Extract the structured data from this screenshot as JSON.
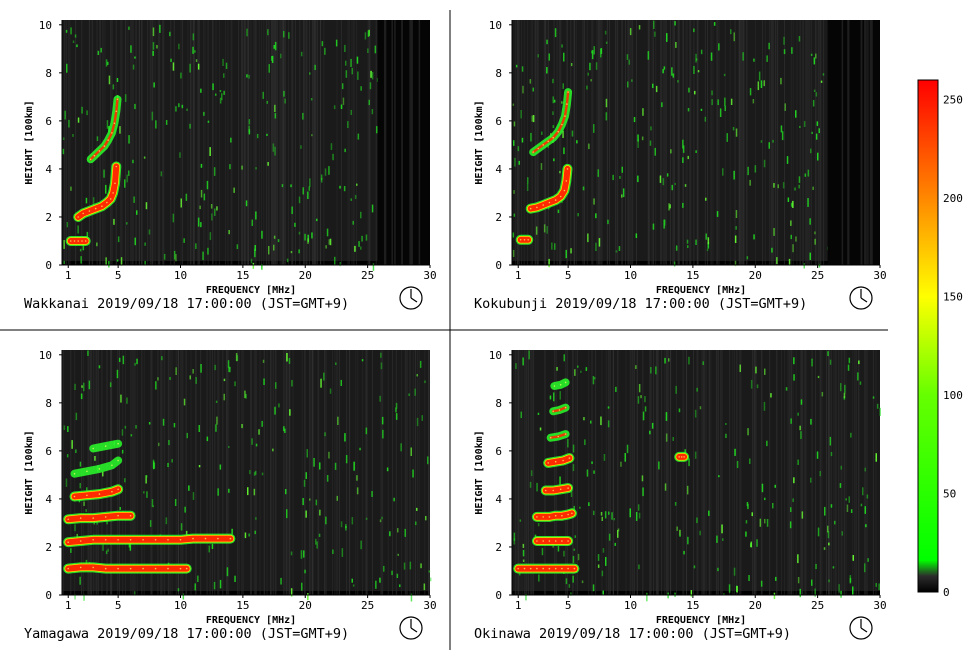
{
  "chart_data": [
    {
      "type": "heatmap",
      "station": "Wakkanai",
      "caption": "Wakkanai 2019/09/18 17:00:00 (JST=GMT+9)",
      "xlabel": "FREQUENCY [MHz]",
      "ylabel": "HEIGHT [100km]",
      "xlim": [
        0.5,
        30
      ],
      "ylim": [
        0,
        10.2
      ],
      "x_ticks": [
        1,
        5,
        10,
        15,
        20,
        25,
        30
      ],
      "y_ticks": [
        0,
        2,
        4,
        6,
        8,
        10
      ],
      "cutoff_mhz": 25.8,
      "traces": [
        {
          "x": [
            1.2,
            1.5,
            1.8,
            2.1,
            2.4
          ],
          "y": [
            1.0,
            1.0,
            1.0,
            1.0,
            1.0
          ],
          "level": "high"
        },
        {
          "x": [
            1.8,
            2.2,
            2.7,
            3.2,
            3.7,
            4.1,
            4.4,
            4.6,
            4.75,
            4.85
          ],
          "y": [
            2.0,
            2.15,
            2.25,
            2.35,
            2.45,
            2.6,
            2.75,
            3.0,
            3.4,
            4.1
          ],
          "level": "high"
        },
        {
          "x": [
            2.8,
            3.1,
            3.5,
            3.9,
            4.2,
            4.5,
            4.7,
            4.85,
            4.95
          ],
          "y": [
            4.4,
            4.55,
            4.75,
            4.95,
            5.2,
            5.5,
            5.9,
            6.4,
            6.9
          ],
          "level": "mid"
        }
      ]
    },
    {
      "type": "heatmap",
      "station": "Kokubunji",
      "caption": "Kokubunji 2019/09/18 17:00:00 (JST=GMT+9)",
      "xlabel": "FREQUENCY [MHz]",
      "ylabel": "HEIGHT [100km]",
      "xlim": [
        0.5,
        30
      ],
      "ylim": [
        0,
        10.2
      ],
      "x_ticks": [
        1,
        5,
        10,
        15,
        20,
        25,
        30
      ],
      "y_ticks": [
        0,
        2,
        4,
        6,
        8,
        10
      ],
      "cutoff_mhz": 25.8,
      "traces": [
        {
          "x": [
            1.2,
            1.5,
            1.8
          ],
          "y": [
            1.05,
            1.05,
            1.05
          ],
          "level": "high"
        },
        {
          "x": [
            2.0,
            2.5,
            3.0,
            3.5,
            4.0,
            4.4,
            4.7,
            4.85,
            4.95
          ],
          "y": [
            2.35,
            2.4,
            2.5,
            2.6,
            2.7,
            2.85,
            3.1,
            3.5,
            4.0
          ],
          "level": "high"
        },
        {
          "x": [
            2.2,
            2.6,
            3.0,
            3.4,
            3.8,
            4.2,
            4.5,
            4.75,
            4.9,
            5.0
          ],
          "y": [
            4.7,
            4.85,
            5.0,
            5.15,
            5.3,
            5.55,
            5.85,
            6.2,
            6.7,
            7.2
          ],
          "level": "mid"
        }
      ]
    },
    {
      "type": "heatmap",
      "station": "Yamagawa",
      "caption": "Yamagawa 2019/09/18 17:00:00 (JST=GMT+9)",
      "xlabel": "FREQUENCY [MHz]",
      "ylabel": "HEIGHT [100km]",
      "xlim": [
        0.5,
        30
      ],
      "ylim": [
        0,
        10.2
      ],
      "x_ticks": [
        1,
        5,
        10,
        15,
        20,
        25,
        30
      ],
      "y_ticks": [
        0,
        2,
        4,
        6,
        8,
        10
      ],
      "cutoff_mhz": 30,
      "traces": [
        {
          "x": [
            1.0,
            2.0,
            3.0,
            4.0,
            5.0,
            6.0,
            7.0,
            8.0,
            9.0,
            10.0,
            10.5
          ],
          "y": [
            1.1,
            1.15,
            1.15,
            1.1,
            1.1,
            1.1,
            1.1,
            1.1,
            1.1,
            1.1,
            1.1
          ],
          "level": "high"
        },
        {
          "x": [
            1.0,
            2.0,
            3.0,
            4.0,
            5.0,
            6.0,
            7.0,
            8.0,
            9.0,
            10.0,
            11.0,
            12.0,
            13.0,
            14.0
          ],
          "y": [
            2.2,
            2.25,
            2.3,
            2.3,
            2.3,
            2.3,
            2.3,
            2.3,
            2.3,
            2.3,
            2.35,
            2.35,
            2.35,
            2.35
          ],
          "level": "high"
        },
        {
          "x": [
            1.0,
            2.0,
            3.0,
            4.0,
            5.0,
            6.0
          ],
          "y": [
            3.15,
            3.2,
            3.2,
            3.25,
            3.3,
            3.3
          ],
          "level": "high"
        },
        {
          "x": [
            1.5,
            2.5,
            3.5,
            4.5,
            5.0
          ],
          "y": [
            4.1,
            4.15,
            4.2,
            4.3,
            4.4
          ],
          "level": "high"
        },
        {
          "x": [
            1.5,
            2.5,
            3.5,
            4.5,
            5.0
          ],
          "y": [
            5.05,
            5.15,
            5.25,
            5.4,
            5.6
          ],
          "level": "low"
        },
        {
          "x": [
            3.0,
            4.0,
            5.0
          ],
          "y": [
            6.1,
            6.2,
            6.3
          ],
          "level": "low"
        }
      ]
    },
    {
      "type": "heatmap",
      "station": "Okinawa",
      "caption": "Okinawa 2019/09/18 17:00:00 (JST=GMT+9)",
      "xlabel": "FREQUENCY [MHz]",
      "ylabel": "HEIGHT [100km]",
      "xlim": [
        0.5,
        30
      ],
      "ylim": [
        0,
        10.2
      ],
      "x_ticks": [
        1,
        5,
        10,
        15,
        20,
        25,
        30
      ],
      "y_ticks": [
        0,
        2,
        4,
        6,
        8,
        10
      ],
      "cutoff_mhz": 30,
      "traces": [
        {
          "x": [
            1.0,
            1.5,
            2.0,
            2.5,
            3.0,
            3.5,
            4.0,
            4.5,
            5.0,
            5.5
          ],
          "y": [
            1.1,
            1.1,
            1.1,
            1.1,
            1.1,
            1.1,
            1.1,
            1.1,
            1.1,
            1.1
          ],
          "level": "high"
        },
        {
          "x": [
            2.5,
            3.0,
            3.5,
            4.0,
            4.5,
            5.0
          ],
          "y": [
            2.25,
            2.25,
            2.25,
            2.25,
            2.25,
            2.25
          ],
          "level": "high"
        },
        {
          "x": [
            2.5,
            3.0,
            3.5,
            4.0,
            4.5,
            5.0,
            5.3
          ],
          "y": [
            3.25,
            3.25,
            3.25,
            3.3,
            3.3,
            3.35,
            3.4
          ],
          "level": "high"
        },
        {
          "x": [
            3.2,
            3.8,
            4.4,
            5.0
          ],
          "y": [
            4.35,
            4.35,
            4.4,
            4.45
          ],
          "level": "high"
        },
        {
          "x": [
            3.4,
            4.0,
            4.6,
            5.1
          ],
          "y": [
            5.5,
            5.55,
            5.6,
            5.7
          ],
          "level": "high"
        },
        {
          "x": [
            3.6,
            4.2,
            4.8
          ],
          "y": [
            6.55,
            6.6,
            6.7
          ],
          "level": "mid"
        },
        {
          "x": [
            3.8,
            4.3,
            4.8
          ],
          "y": [
            7.65,
            7.7,
            7.8
          ],
          "level": "mid"
        },
        {
          "x": [
            3.9,
            4.4,
            4.8
          ],
          "y": [
            8.7,
            8.75,
            8.85
          ],
          "level": "low"
        },
        {
          "x": [
            13.9,
            14.1,
            14.3
          ],
          "y": [
            5.75,
            5.75,
            5.75
          ],
          "level": "high"
        }
      ]
    }
  ],
  "colorbar": {
    "ticks": [
      "250",
      "200",
      "150",
      "100",
      "50",
      "0"
    ],
    "tick_values": [
      250,
      200,
      150,
      100,
      50,
      0
    ],
    "range": [
      0,
      260
    ],
    "stops": [
      {
        "value": 0,
        "color": "#000000"
      },
      {
        "value": 8,
        "color": "#2c2c2c"
      },
      {
        "value": 16,
        "color": "#00ff00"
      },
      {
        "value": 100,
        "color": "#66ff00"
      },
      {
        "value": 150,
        "color": "#ffff00"
      },
      {
        "value": 200,
        "color": "#ff8800"
      },
      {
        "value": 260,
        "color": "#ff0000"
      }
    ]
  },
  "colors": {
    "background": "#1a1a1a",
    "low": "#2aff2a",
    "mid": "#88ff22",
    "high": "#ff2a00",
    "edge": "#ffe000"
  }
}
